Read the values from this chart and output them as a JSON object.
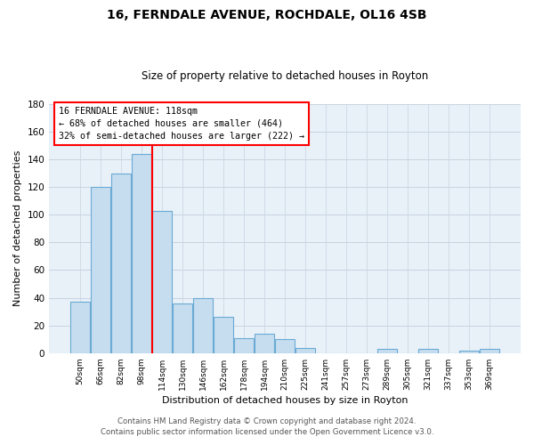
{
  "title1": "16, FERNDALE AVENUE, ROCHDALE, OL16 4SB",
  "title2": "Size of property relative to detached houses in Royton",
  "xlabel": "Distribution of detached houses by size in Royton",
  "ylabel": "Number of detached properties",
  "bar_labels": [
    "50sqm",
    "66sqm",
    "82sqm",
    "98sqm",
    "114sqm",
    "130sqm",
    "146sqm",
    "162sqm",
    "178sqm",
    "194sqm",
    "210sqm",
    "225sqm",
    "241sqm",
    "257sqm",
    "273sqm",
    "289sqm",
    "305sqm",
    "321sqm",
    "337sqm",
    "353sqm",
    "369sqm"
  ],
  "bar_values": [
    37,
    120,
    130,
    144,
    103,
    36,
    40,
    26,
    11,
    14,
    10,
    4,
    0,
    0,
    0,
    3,
    0,
    3,
    0,
    2,
    3
  ],
  "bar_color": "#c5ddef",
  "bar_edge_color": "#6aaad4",
  "property_line_index": 3.5,
  "annotation_line1": "16 FERNDALE AVENUE: 118sqm",
  "annotation_line2": "← 68% of detached houses are smaller (464)",
  "annotation_line3": "32% of semi-detached houses are larger (222) →",
  "ylim": [
    0,
    180
  ],
  "yticks": [
    0,
    20,
    40,
    60,
    80,
    100,
    120,
    140,
    160,
    180
  ],
  "footer1": "Contains HM Land Registry data © Crown copyright and database right 2024.",
  "footer2": "Contains public sector information licensed under the Open Government Licence v3.0.",
  "bg_color": "#ffffff",
  "plot_bg_color": "#e8f0f8",
  "grid_color": "#c8d4e0"
}
